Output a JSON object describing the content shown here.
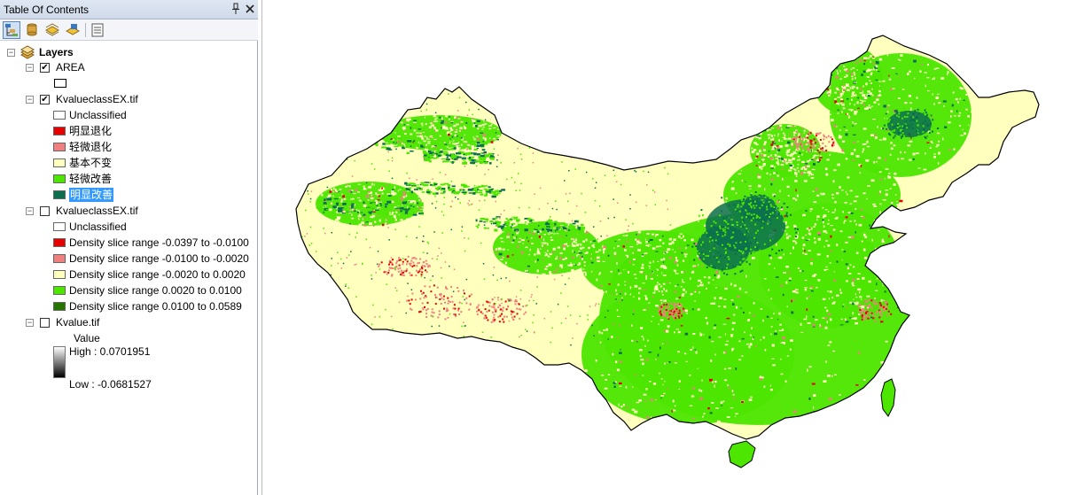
{
  "toc": {
    "title": "Table Of Contents",
    "pin_icon": "pin-icon",
    "close_icon": "close-icon",
    "toolbar": [
      {
        "name": "list-by-drawing-order-icon",
        "active": true
      },
      {
        "name": "list-by-source-icon",
        "active": false
      },
      {
        "name": "list-by-visibility-icon",
        "active": false
      },
      {
        "name": "list-by-selection-icon",
        "active": false
      },
      {
        "name": "options-icon",
        "active": false
      }
    ],
    "root": {
      "label": "Layers",
      "expanded": true
    },
    "layers": [
      {
        "name": "AREA",
        "checked": true,
        "legend": [
          {
            "label": "",
            "color": "#ffffff"
          }
        ]
      },
      {
        "name": "KvalueclassEX.tif",
        "checked": true,
        "legend": [
          {
            "label": "Unclassified",
            "color": "#ffffff"
          },
          {
            "label": "明显退化",
            "color": "#e60000"
          },
          {
            "label": "轻微退化",
            "color": "#f08080"
          },
          {
            "label": "基本不变",
            "color": "#ffffbe"
          },
          {
            "label": "轻微改善",
            "color": "#4ce600"
          },
          {
            "label": "明显改善",
            "color": "#0b6e4f",
            "selected": true
          }
        ]
      },
      {
        "name": "KvalueclassEX.tif",
        "checked": false,
        "legend": [
          {
            "label": "Unclassified",
            "color": "#ffffff"
          },
          {
            "label": "Density slice range -0.0397 to -0.0100",
            "color": "#e60000"
          },
          {
            "label": "Density slice range -0.0100 to -0.0020",
            "color": "#f08080"
          },
          {
            "label": "Density slice range -0.0020 to 0.0020",
            "color": "#ffffbe"
          },
          {
            "label": "Density slice range 0.0020 to 0.0100",
            "color": "#4ce600"
          },
          {
            "label": "Density slice range 0.0100 to 0.0589",
            "color": "#267300"
          }
        ]
      },
      {
        "name": "Kvalue.tif",
        "checked": false,
        "stretch": {
          "title": "Value",
          "high": "High : 0.0701951",
          "low": "Low : -0.0681527"
        }
      }
    ]
  },
  "map": {
    "background": "#ffffff",
    "colors": {
      "stable": "#ffffbe",
      "slight_improve": "#4ce600",
      "strong_improve": "#0b6e4f",
      "slight_degrade": "#f08080",
      "strong_degrade": "#e60000",
      "outline": "#000000"
    }
  }
}
